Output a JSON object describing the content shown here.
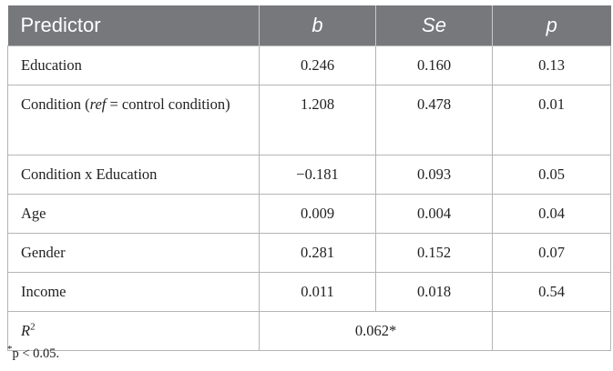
{
  "table": {
    "headers": [
      {
        "label": "Predictor"
      },
      {
        "label": "b"
      },
      {
        "label": "Se"
      },
      {
        "label": "p"
      }
    ],
    "rows": [
      {
        "predictor": "Education",
        "b": "0.246",
        "se": "0.160",
        "p": "0.13"
      },
      {
        "predictor_pre": "Condition (",
        "predictor_ital": "ref",
        "predictor_post": " = control condition)",
        "b": "1.208",
        "se": "0.478",
        "p": "0.01"
      },
      {
        "predictor": "Condition x Education",
        "b": "−0.181",
        "se": "0.093",
        "p": "0.05"
      },
      {
        "predictor": "Age",
        "b": "0.009",
        "se": "0.004",
        "p": "0.04"
      },
      {
        "predictor": "Gender",
        "b": "0.281",
        "se": "0.152",
        "p": "0.07"
      },
      {
        "predictor": "Income",
        "b": "0.011",
        "se": "0.018",
        "p": "0.54"
      }
    ],
    "r2": {
      "label": "R",
      "sup": "2",
      "value": "0.062*"
    }
  },
  "note": {
    "sup": "*",
    "text": "p < 0.05."
  }
}
